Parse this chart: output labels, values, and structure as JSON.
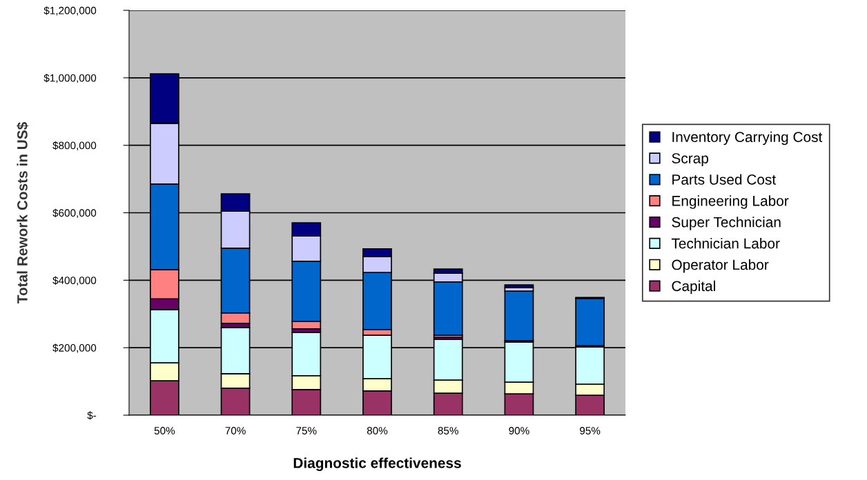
{
  "chart_data": {
    "type": "bar",
    "stacked": true,
    "xlabel": "Diagnostic effectiveness",
    "ylabel": "Total Rework Costs in US$",
    "categories": [
      "50%",
      "70%",
      "75%",
      "80%",
      "85%",
      "90%",
      "95%"
    ],
    "series": [
      {
        "name": "Capital",
        "color": "#993366",
        "values": [
          102000,
          80000,
          76000,
          72000,
          65000,
          63000,
          59000
        ]
      },
      {
        "name": "Operator Labor",
        "color": "#ffffcc",
        "values": [
          53000,
          43000,
          41000,
          36000,
          39000,
          35000,
          33000
        ]
      },
      {
        "name": "Technician Labor",
        "color": "#ccffff",
        "values": [
          158000,
          137000,
          128000,
          129000,
          121000,
          119000,
          110000
        ]
      },
      {
        "name": "Super Technician",
        "color": "#660066",
        "values": [
          32000,
          12000,
          11000,
          null,
          6000,
          4000,
          4000
        ]
      },
      {
        "name": "Engineering Labor",
        "color": "#ff8080",
        "values": [
          86000,
          31000,
          22000,
          17000,
          6000,
          null,
          0
        ]
      },
      {
        "name": "Parts Used Cost",
        "color": "#0066cc",
        "values": [
          254000,
          192000,
          178000,
          169000,
          158000,
          147000,
          140000
        ]
      },
      {
        "name": "Scrap",
        "color": "#ccccff",
        "values": [
          180000,
          110000,
          75000,
          47000,
          26000,
          10000,
          1000
        ]
      },
      {
        "name": "Inventory Carrying Cost",
        "color": "#000080",
        "values": [
          147000,
          51000,
          39000,
          23000,
          12000,
          8000,
          2000
        ]
      }
    ],
    "ylim": [
      0,
      1200000
    ],
    "yticks": [
      {
        "value": 0,
        "label": "$-"
      },
      {
        "value": 200000,
        "label": "$200,000"
      },
      {
        "value": 400000,
        "label": "$400,000"
      },
      {
        "value": 600000,
        "label": "$600,000"
      },
      {
        "value": 800000,
        "label": "$800,000"
      },
      {
        "value": 1000000,
        "label": "$1,000,000"
      },
      {
        "value": 1200000,
        "label": "$1,200,000"
      }
    ],
    "grid": "y",
    "legend": "right"
  }
}
